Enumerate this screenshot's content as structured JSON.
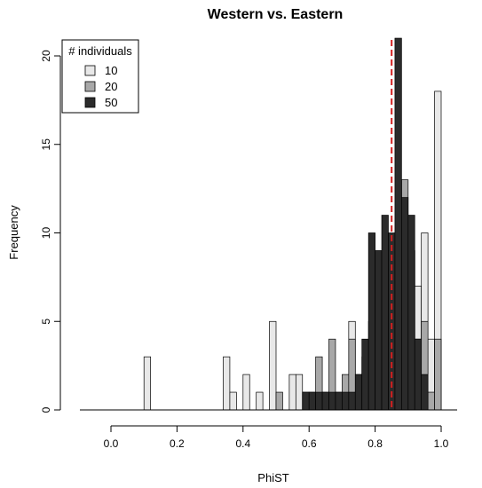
{
  "chart_data": {
    "type": "bar",
    "title": "Western vs. Eastern",
    "xlabel": "PhiST",
    "ylabel": "Frequency",
    "xlim": [
      -0.1,
      1.04
    ],
    "ylim": [
      0,
      21
    ],
    "x_ticks": [
      0.0,
      0.2,
      0.4,
      0.6,
      0.8,
      1.0
    ],
    "x_tick_labels": [
      "0.0",
      "0.2",
      "0.4",
      "0.6",
      "0.8",
      "1.0"
    ],
    "y_ticks": [
      0,
      5,
      10,
      15,
      20
    ],
    "y_tick_labels": [
      "0",
      "5",
      "10",
      "15",
      "20"
    ],
    "bin_width": 0.02,
    "grid": false,
    "legend": {
      "title": "# individuals",
      "position": "top-left"
    },
    "reference_line": {
      "x": 0.85,
      "color": "#d42020",
      "style": "dashed"
    },
    "series": [
      {
        "name": "10",
        "color": "#e8e8e8",
        "bins": [
          [
            0.1,
            3
          ],
          [
            0.34,
            3
          ],
          [
            0.36,
            1
          ],
          [
            0.4,
            2
          ],
          [
            0.44,
            1
          ],
          [
            0.48,
            5
          ],
          [
            0.54,
            2
          ],
          [
            0.56,
            2
          ],
          [
            0.72,
            5
          ],
          [
            0.74,
            2
          ],
          [
            0.76,
            2
          ],
          [
            0.78,
            2
          ],
          [
            0.8,
            4
          ],
          [
            0.82,
            6
          ],
          [
            0.84,
            6
          ],
          [
            0.86,
            8
          ],
          [
            0.88,
            9
          ],
          [
            0.9,
            9
          ],
          [
            0.92,
            7
          ],
          [
            0.94,
            10
          ],
          [
            0.96,
            4
          ],
          [
            0.98,
            18
          ]
        ]
      },
      {
        "name": "20",
        "color": "#a8a8a8",
        "bins": [
          [
            0.5,
            1
          ],
          [
            0.58,
            1
          ],
          [
            0.6,
            1
          ],
          [
            0.62,
            3
          ],
          [
            0.64,
            1
          ],
          [
            0.66,
            4
          ],
          [
            0.68,
            1
          ],
          [
            0.7,
            2
          ],
          [
            0.72,
            4
          ],
          [
            0.74,
            1
          ],
          [
            0.76,
            3
          ],
          [
            0.78,
            5
          ],
          [
            0.8,
            3
          ],
          [
            0.82,
            6
          ],
          [
            0.84,
            8
          ],
          [
            0.86,
            9
          ],
          [
            0.88,
            13
          ],
          [
            0.9,
            9
          ],
          [
            0.92,
            4
          ],
          [
            0.94,
            5
          ],
          [
            0.96,
            1
          ],
          [
            0.98,
            4
          ]
        ]
      },
      {
        "name": "50",
        "color": "#2b2b2b",
        "bins": [
          [
            0.58,
            1
          ],
          [
            0.6,
            1
          ],
          [
            0.62,
            1
          ],
          [
            0.64,
            1
          ],
          [
            0.66,
            1
          ],
          [
            0.68,
            1
          ],
          [
            0.7,
            1
          ],
          [
            0.72,
            1
          ],
          [
            0.74,
            2
          ],
          [
            0.76,
            4
          ],
          [
            0.78,
            10
          ],
          [
            0.8,
            9
          ],
          [
            0.82,
            11
          ],
          [
            0.84,
            10
          ],
          [
            0.86,
            21
          ],
          [
            0.88,
            12
          ],
          [
            0.9,
            11
          ],
          [
            0.92,
            4
          ],
          [
            0.94,
            2
          ]
        ]
      }
    ]
  }
}
